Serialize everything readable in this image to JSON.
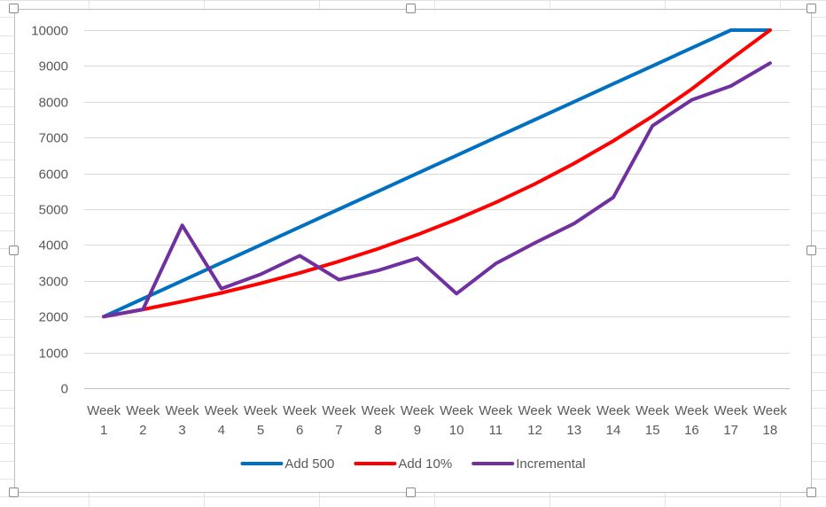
{
  "chart_data": {
    "type": "line",
    "categories": [
      [
        "Week",
        "1"
      ],
      [
        "Week",
        "2"
      ],
      [
        "Week",
        "3"
      ],
      [
        "Week",
        "4"
      ],
      [
        "Week",
        "5"
      ],
      [
        "Week",
        "6"
      ],
      [
        "Week",
        "7"
      ],
      [
        "Week",
        "8"
      ],
      [
        "Week",
        "9"
      ],
      [
        "Week",
        "10"
      ],
      [
        "Week",
        "11"
      ],
      [
        "Week",
        "12"
      ],
      [
        "Week",
        "13"
      ],
      [
        "Week",
        "14"
      ],
      [
        "Week",
        "15"
      ],
      [
        "Week",
        "16"
      ],
      [
        "Week",
        "17"
      ],
      [
        "Week",
        "18"
      ]
    ],
    "ylim": [
      0,
      10000
    ],
    "yticks": [
      0,
      1000,
      2000,
      3000,
      4000,
      5000,
      6000,
      7000,
      8000,
      9000,
      10000
    ],
    "grid": true,
    "legend_position": "bottom",
    "series": [
      {
        "name": "Add 500",
        "color": "#0070C0",
        "values": [
          2000,
          2500,
          3000,
          3500,
          4000,
          4500,
          5000,
          5500,
          6000,
          6500,
          7000,
          7500,
          8000,
          8500,
          9000,
          9500,
          10000,
          10000
        ]
      },
      {
        "name": "Add 10%",
        "color": "#FF0000",
        "values": [
          2000,
          2200,
          2420,
          2662,
          2928,
          3221,
          3543,
          3897,
          4287,
          4716,
          5187,
          5706,
          6277,
          6905,
          7595,
          8355,
          9190,
          10000
        ]
      },
      {
        "name": "Incremental",
        "color": "#7030A0",
        "values": [
          2000,
          2200,
          4550,
          2780,
          3180,
          3700,
          3030,
          3290,
          3630,
          2640,
          3480,
          4060,
          4600,
          5330,
          7330,
          8050,
          8440,
          9080
        ]
      }
    ]
  }
}
